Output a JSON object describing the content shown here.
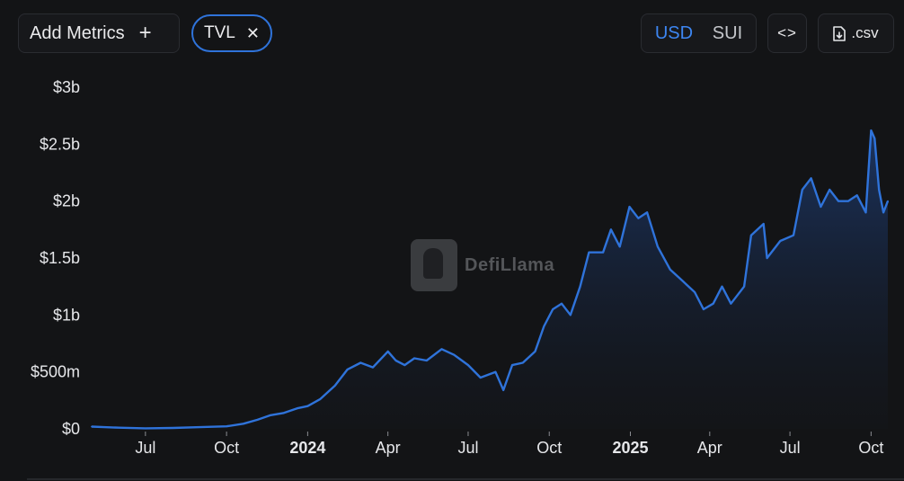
{
  "toolbar": {
    "add_metrics_label": "Add Metrics",
    "add_icon": "+",
    "metric_chip_label": "TVL",
    "remove_icon": "✕",
    "currency_options": [
      "USD",
      "SUI"
    ],
    "currency_selected": "USD",
    "embed_label": "<>",
    "csv_label": ".csv"
  },
  "watermark": {
    "brand": "DefiLlama"
  },
  "colors": {
    "line": "#2f73da",
    "accent": "#3d86f2",
    "background": "#131416"
  },
  "chart_data": {
    "type": "area",
    "title": "",
    "xlabel": "",
    "ylabel": "",
    "ylim": [
      0,
      3000000000
    ],
    "y_ticks": [
      0,
      500000000,
      1000000000,
      1500000000,
      2000000000,
      2500000000,
      3000000000
    ],
    "y_tick_labels": [
      "$0",
      "$500m",
      "$1b",
      "$1.5b",
      "$2b",
      "$2.5b",
      "$3b"
    ],
    "x_ticks": [
      {
        "date": "2023-07-01",
        "label": "Jul",
        "bold": false
      },
      {
        "date": "2023-10-01",
        "label": "Oct",
        "bold": false
      },
      {
        "date": "2024-01-01",
        "label": "2024",
        "bold": true
      },
      {
        "date": "2024-04-01",
        "label": "Apr",
        "bold": false
      },
      {
        "date": "2024-07-01",
        "label": "Jul",
        "bold": false
      },
      {
        "date": "2024-10-01",
        "label": "Oct",
        "bold": false
      },
      {
        "date": "2025-01-01",
        "label": "2025",
        "bold": true
      },
      {
        "date": "2025-04-01",
        "label": "Apr",
        "bold": false
      },
      {
        "date": "2025-07-01",
        "label": "Jul",
        "bold": false
      },
      {
        "date": "2025-10-01",
        "label": "Oct",
        "bold": false
      }
    ],
    "xlim": [
      "2023-05-01",
      "2025-10-20"
    ],
    "series": [
      {
        "points": [
          [
            "2023-05-01",
            20000000
          ],
          [
            "2023-05-15",
            15000000
          ],
          [
            "2023-06-01",
            10000000
          ],
          [
            "2023-07-01",
            5000000
          ],
          [
            "2023-08-01",
            8000000
          ],
          [
            "2023-09-01",
            15000000
          ],
          [
            "2023-10-01",
            22000000
          ],
          [
            "2023-10-20",
            45000000
          ],
          [
            "2023-11-05",
            80000000
          ],
          [
            "2023-11-20",
            120000000
          ],
          [
            "2023-12-05",
            140000000
          ],
          [
            "2023-12-20",
            180000000
          ],
          [
            "2024-01-01",
            200000000
          ],
          [
            "2024-01-15",
            260000000
          ],
          [
            "2024-02-01",
            380000000
          ],
          [
            "2024-02-15",
            520000000
          ],
          [
            "2024-03-01",
            580000000
          ],
          [
            "2024-03-15",
            540000000
          ],
          [
            "2024-04-01",
            680000000
          ],
          [
            "2024-04-10",
            600000000
          ],
          [
            "2024-04-20",
            560000000
          ],
          [
            "2024-05-01",
            620000000
          ],
          [
            "2024-05-15",
            600000000
          ],
          [
            "2024-06-01",
            700000000
          ],
          [
            "2024-06-15",
            650000000
          ],
          [
            "2024-07-01",
            560000000
          ],
          [
            "2024-07-15",
            450000000
          ],
          [
            "2024-08-01",
            500000000
          ],
          [
            "2024-08-10",
            340000000
          ],
          [
            "2024-08-20",
            560000000
          ],
          [
            "2024-09-01",
            580000000
          ],
          [
            "2024-09-15",
            680000000
          ],
          [
            "2024-09-25",
            900000000
          ],
          [
            "2024-10-05",
            1050000000
          ],
          [
            "2024-10-15",
            1100000000
          ],
          [
            "2024-10-25",
            1000000000
          ],
          [
            "2024-11-05",
            1250000000
          ],
          [
            "2024-11-15",
            1550000000
          ],
          [
            "2024-12-01",
            1550000000
          ],
          [
            "2024-12-10",
            1750000000
          ],
          [
            "2024-12-20",
            1600000000
          ],
          [
            "2024-12-31",
            1950000000
          ],
          [
            "2025-01-10",
            1850000000
          ],
          [
            "2025-01-20",
            1900000000
          ],
          [
            "2025-02-01",
            1600000000
          ],
          [
            "2025-02-15",
            1400000000
          ],
          [
            "2025-03-01",
            1300000000
          ],
          [
            "2025-03-15",
            1200000000
          ],
          [
            "2025-03-25",
            1050000000
          ],
          [
            "2025-04-05",
            1100000000
          ],
          [
            "2025-04-15",
            1250000000
          ],
          [
            "2025-04-25",
            1100000000
          ],
          [
            "2025-05-10",
            1250000000
          ],
          [
            "2025-05-18",
            1700000000
          ],
          [
            "2025-06-01",
            1800000000
          ],
          [
            "2025-06-05",
            1500000000
          ],
          [
            "2025-06-20",
            1650000000
          ],
          [
            "2025-07-05",
            1700000000
          ],
          [
            "2025-07-15",
            2100000000
          ],
          [
            "2025-07-25",
            2200000000
          ],
          [
            "2025-08-05",
            1950000000
          ],
          [
            "2025-08-15",
            2100000000
          ],
          [
            "2025-08-25",
            2000000000
          ],
          [
            "2025-09-05",
            2000000000
          ],
          [
            "2025-09-15",
            2050000000
          ],
          [
            "2025-09-25",
            1900000000
          ],
          [
            "2025-10-01",
            2620000000
          ],
          [
            "2025-10-05",
            2550000000
          ],
          [
            "2025-10-10",
            2100000000
          ],
          [
            "2025-10-15",
            1900000000
          ],
          [
            "2025-10-20",
            2000000000
          ]
        ]
      }
    ],
    "grid": false,
    "fill": "gradient"
  }
}
